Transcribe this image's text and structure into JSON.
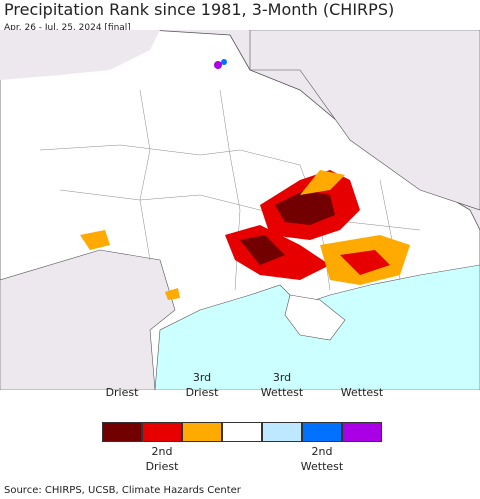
{
  "header": {
    "title": "Precipitation Rank since 1981, 3-Month (CHIRPS)",
    "subtitle": "Apr. 26 - Jul. 25, 2024 [final]"
  },
  "legend": [
    {
      "label": "Driest",
      "color": "#730000"
    },
    {
      "label": "2nd Driest",
      "color": "#e60000"
    },
    {
      "label": "3rd Driest",
      "color": "#ffaa00"
    },
    {
      "label": null,
      "color": "#ffffff"
    },
    {
      "label": "3rd Wettest",
      "color": "#bee8ff"
    },
    {
      "label": "2nd Wettest",
      "color": "#0070ff"
    },
    {
      "label": "Wettest",
      "color": "#a900e6"
    }
  ],
  "footer": {
    "source": "Source: CHIRPS, UCSB, Climate Hazards Center"
  }
}
